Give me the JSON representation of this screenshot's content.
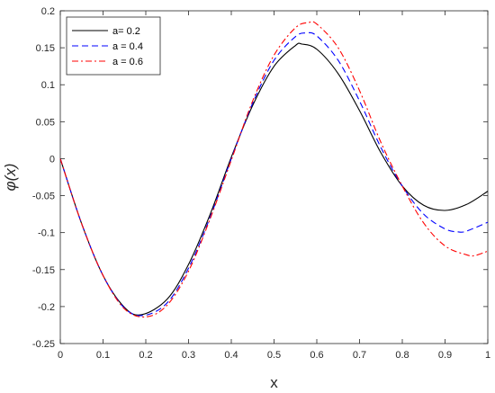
{
  "chart_data": {
    "type": "line",
    "xlabel": "x",
    "ylabel": "φ(x)",
    "xlim": [
      0,
      1
    ],
    "ylim": [
      -0.25,
      0.2
    ],
    "xticks": [
      "0",
      "0.1",
      "0.2",
      "0.3",
      "0.4",
      "0.5",
      "0.6",
      "0.7",
      "0.8",
      "0.9",
      "1"
    ],
    "yticks": [
      "-0.25",
      "-0.2",
      "-0.15",
      "-0.1",
      "-0.05",
      "0",
      "0.05",
      "0.1",
      "0.15",
      "0.2"
    ],
    "grid": false,
    "legend_position": "top-left",
    "series": [
      {
        "name": "a= 0.2",
        "color": "#000000",
        "style": "solid",
        "x": [
          0,
          0.05,
          0.1,
          0.15,
          0.19,
          0.25,
          0.3,
          0.35,
          0.4,
          0.45,
          0.5,
          0.55,
          0.565,
          0.6,
          0.65,
          0.7,
          0.75,
          0.8,
          0.85,
          0.9,
          0.95,
          1.0
        ],
        "y": [
          0,
          -0.088,
          -0.158,
          -0.201,
          -0.211,
          -0.19,
          -0.143,
          -0.076,
          0.002,
          0.072,
          0.125,
          0.153,
          0.155,
          0.148,
          0.115,
          0.065,
          0.008,
          -0.037,
          -0.063,
          -0.07,
          -0.062,
          -0.044
        ]
      },
      {
        "name": "a = 0.4",
        "color": "#0000ff",
        "style": "dashed",
        "x": [
          0,
          0.05,
          0.1,
          0.15,
          0.195,
          0.25,
          0.3,
          0.35,
          0.4,
          0.45,
          0.5,
          0.55,
          0.575,
          0.6,
          0.65,
          0.7,
          0.75,
          0.8,
          0.85,
          0.9,
          0.93,
          0.95,
          1.0
        ],
        "y": [
          0,
          -0.088,
          -0.158,
          -0.202,
          -0.212,
          -0.195,
          -0.148,
          -0.08,
          0.0,
          0.075,
          0.133,
          0.165,
          0.17,
          0.166,
          0.133,
          0.078,
          0.015,
          -0.037,
          -0.075,
          -0.095,
          -0.099,
          -0.098,
          -0.086
        ]
      },
      {
        "name": "a = 0.6",
        "color": "#ff0000",
        "style": "dashdot",
        "x": [
          0,
          0.05,
          0.1,
          0.15,
          0.2,
          0.25,
          0.3,
          0.35,
          0.4,
          0.45,
          0.5,
          0.55,
          0.58,
          0.6,
          0.65,
          0.7,
          0.75,
          0.8,
          0.85,
          0.9,
          0.95,
          0.97,
          1.0
        ],
        "y": [
          0,
          -0.088,
          -0.158,
          -0.203,
          -0.214,
          -0.198,
          -0.152,
          -0.082,
          -0.002,
          0.078,
          0.14,
          0.177,
          0.184,
          0.182,
          0.15,
          0.092,
          0.022,
          -0.037,
          -0.087,
          -0.118,
          -0.13,
          -0.131,
          -0.125
        ]
      }
    ]
  }
}
